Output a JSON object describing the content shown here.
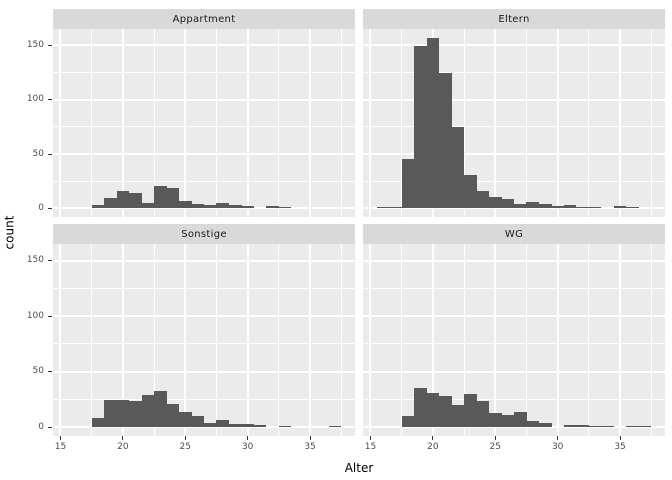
{
  "chart_data": {
    "type": "bar",
    "subtype": "faceted-histogram",
    "title": "",
    "xlabel": "Alter",
    "ylabel": "count",
    "binwidth": 1,
    "x_ticks": [
      15,
      20,
      25,
      30,
      35
    ],
    "y_ticks": [
      0,
      50,
      100,
      150
    ],
    "x_minor_ticks": [
      17.5,
      22.5,
      27.5,
      32.5,
      37.5
    ],
    "y_minor_ticks": [
      25,
      75,
      125
    ],
    "xlim": [
      14.4,
      38.6
    ],
    "ylim": [
      -7.85,
      164.85
    ],
    "grid": "on",
    "legend": "none",
    "facets": [
      {
        "label": "Appartment",
        "bins": [
          [
            18,
            3
          ],
          [
            19,
            10
          ],
          [
            20,
            16
          ],
          [
            21,
            14
          ],
          [
            22,
            5
          ],
          [
            23,
            21
          ],
          [
            24,
            19
          ],
          [
            25,
            7
          ],
          [
            26,
            4
          ],
          [
            27,
            3
          ],
          [
            28,
            5
          ],
          [
            29,
            3
          ],
          [
            30,
            2
          ],
          [
            32,
            2
          ],
          [
            33,
            1
          ]
        ]
      },
      {
        "label": "Eltern",
        "bins": [
          [
            16,
            1
          ],
          [
            17,
            1
          ],
          [
            18,
            45
          ],
          [
            19,
            149
          ],
          [
            20,
            157
          ],
          [
            21,
            124
          ],
          [
            22,
            75
          ],
          [
            23,
            31
          ],
          [
            24,
            16
          ],
          [
            25,
            11
          ],
          [
            26,
            9
          ],
          [
            27,
            4
          ],
          [
            28,
            6
          ],
          [
            29,
            4
          ],
          [
            30,
            2
          ],
          [
            31,
            3
          ],
          [
            32,
            1
          ],
          [
            33,
            1
          ],
          [
            35,
            2
          ],
          [
            36,
            1
          ]
        ]
      },
      {
        "label": "Sonstige",
        "bins": [
          [
            18,
            8
          ],
          [
            19,
            25
          ],
          [
            20,
            25
          ],
          [
            21,
            24
          ],
          [
            22,
            29
          ],
          [
            23,
            33
          ],
          [
            24,
            21
          ],
          [
            25,
            14
          ],
          [
            26,
            10
          ],
          [
            27,
            4
          ],
          [
            28,
            7
          ],
          [
            29,
            3
          ],
          [
            30,
            3
          ],
          [
            31,
            2
          ],
          [
            33,
            1
          ],
          [
            37,
            1
          ]
        ]
      },
      {
        "label": "WG",
        "bins": [
          [
            18,
            10
          ],
          [
            19,
            35
          ],
          [
            20,
            31
          ],
          [
            21,
            28
          ],
          [
            22,
            20
          ],
          [
            23,
            30
          ],
          [
            24,
            24
          ],
          [
            25,
            13
          ],
          [
            26,
            11
          ],
          [
            27,
            14
          ],
          [
            28,
            6
          ],
          [
            29,
            4
          ],
          [
            31,
            2
          ],
          [
            32,
            2
          ],
          [
            33,
            1
          ],
          [
            34,
            1
          ],
          [
            36,
            1
          ],
          [
            37,
            1
          ]
        ]
      }
    ]
  },
  "colors": {
    "bar": "#595959",
    "panel_background": "#EBEBEB",
    "strip_background": "#D9D9D9",
    "grid_major": "#FFFFFF",
    "grid_minor": "#FFFFFF",
    "tick_text": "#4D4D4D",
    "strip_text": "#1A1A1A",
    "axis_title_text": "#000000",
    "tick_mark": "#333333"
  }
}
